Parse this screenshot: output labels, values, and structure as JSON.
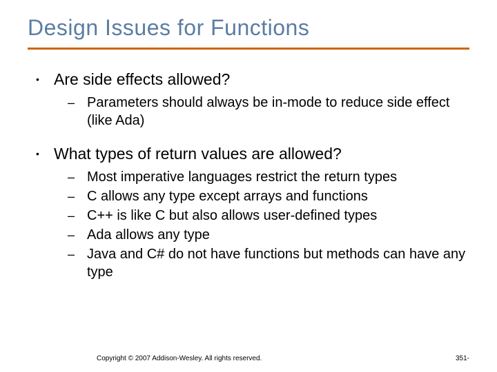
{
  "title": "Design Issues for Functions",
  "title_color": "#5b7ca3",
  "rule_color": "#cc6600",
  "body_color": "#000000",
  "l1_bullet": "•",
  "l2_bullet": "–",
  "items": [
    {
      "text": "Are side effects allowed?",
      "sub": [
        "Parameters should always be in-mode to reduce side effect (like Ada)"
      ]
    },
    {
      "text": "What types of return values are allowed?",
      "sub": [
        "Most imperative languages restrict the return types",
        "C allows any type except arrays and functions",
        "C++ is like C but also allows user-defined types",
        "Ada allows any type",
        "Java and C# do not have functions but methods can have any type"
      ]
    }
  ],
  "footer": {
    "copyright": "Copyright © 2007 Addison-Wesley. All rights reserved.",
    "page": "351-"
  }
}
